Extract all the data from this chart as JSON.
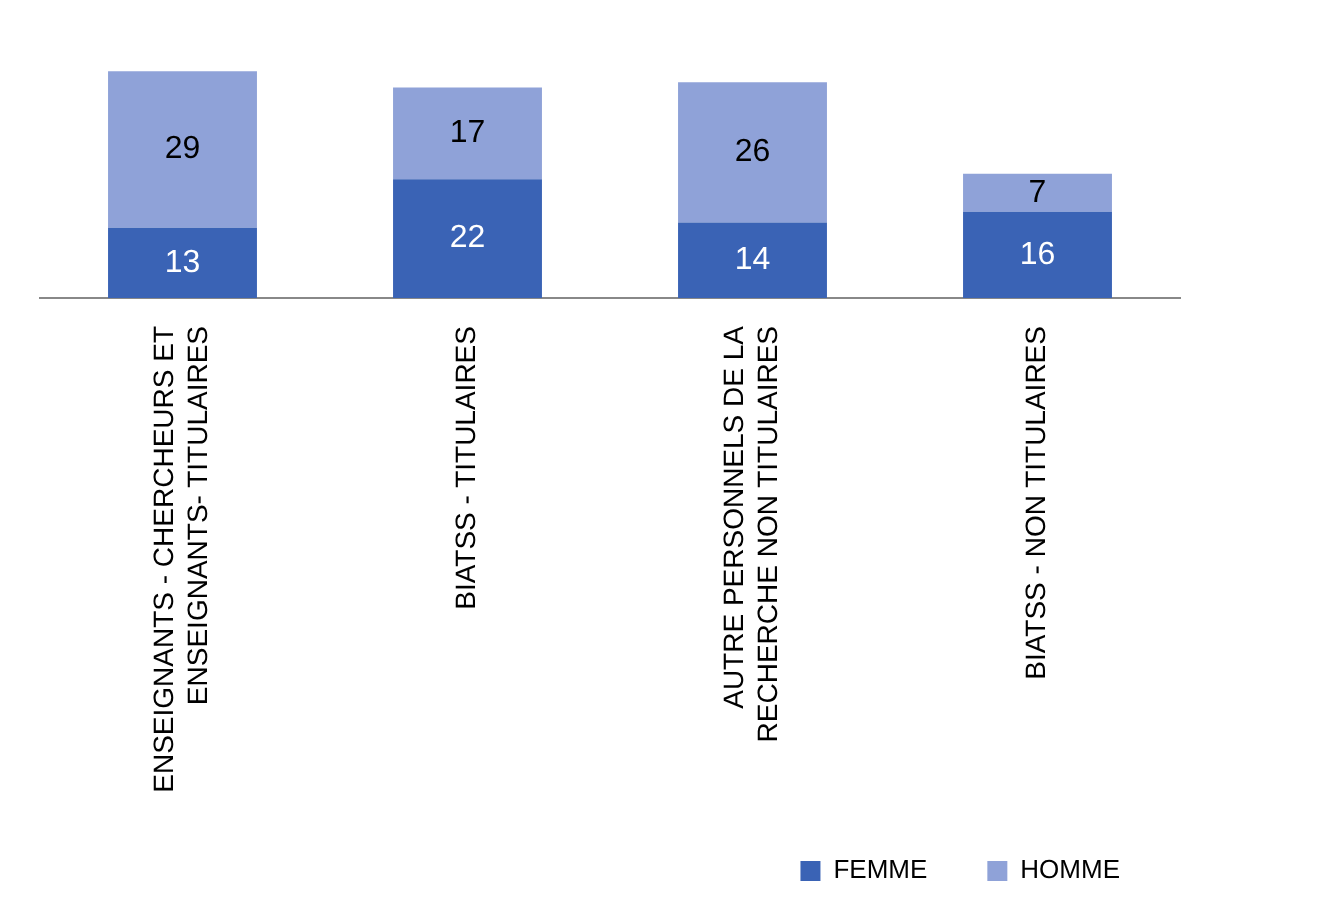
{
  "chart_data": {
    "type": "bar",
    "stacked": true,
    "data_labels": true,
    "grid": false,
    "legend": "bottom right",
    "categories": [
      "ENSEIGNANTS - CHERCHEURS ET ENSEIGNANTS- TITULAIRES",
      "BIATSS - TITULAIRES",
      "AUTRE PERSONNELS DE LA RECHERCHE NON TITULAIRES",
      "BIATSS - NON TITULAIRES"
    ],
    "series": [
      {
        "name": "FEMME",
        "color": "#3a63b5",
        "values": [
          13,
          22,
          14,
          16
        ]
      },
      {
        "name": "HOMME",
        "color": "#8fa2d8",
        "values": [
          29,
          17,
          26,
          7
        ]
      }
    ]
  }
}
